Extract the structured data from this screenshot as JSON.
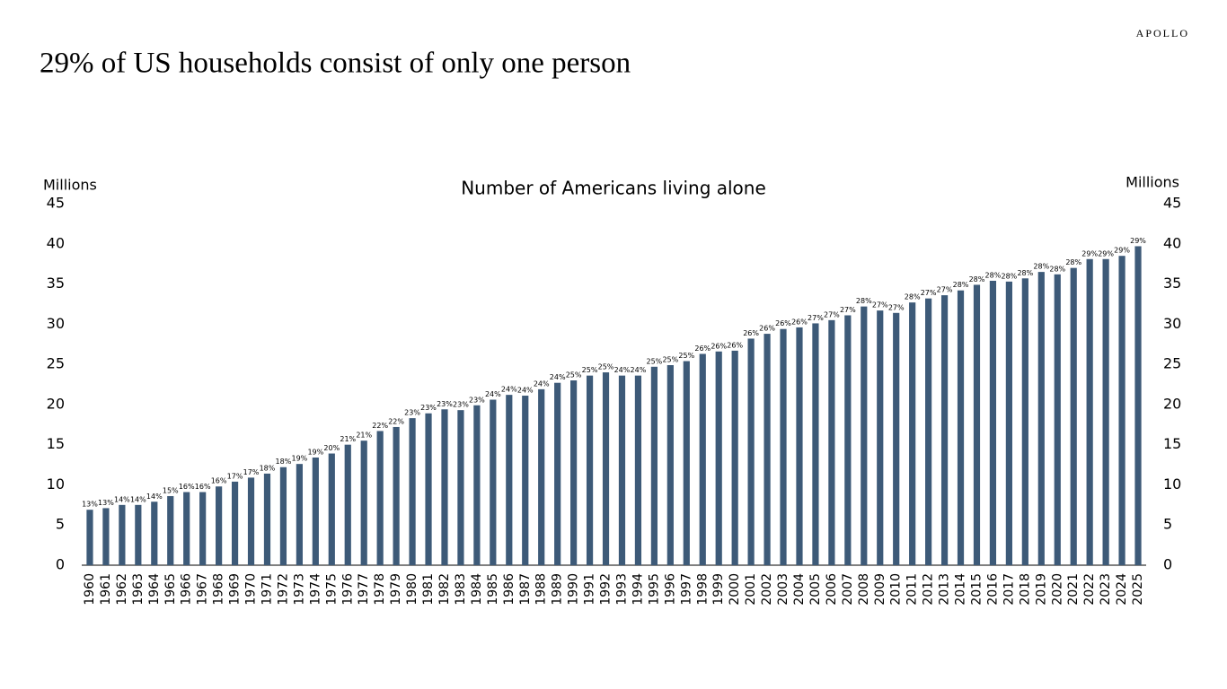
{
  "headline": "29% of US households consist of only one person",
  "brand": "APOLLO",
  "chart_data": {
    "type": "bar",
    "title": "Number of Americans living alone",
    "y_label": "Millions",
    "y2_label": "Millions",
    "color": "#3d5a78",
    "categories": [
      "1960",
      "1961",
      "1962",
      "1963",
      "1964",
      "1965",
      "1966",
      "1967",
      "1968",
      "1969",
      "1970",
      "1971",
      "1972",
      "1973",
      "1974",
      "1975",
      "1976",
      "1977",
      "1978",
      "1979",
      "1980",
      "1981",
      "1982",
      "1983",
      "1984",
      "1985",
      "1986",
      "1987",
      "1988",
      "1989",
      "1990",
      "1991",
      "1992",
      "1993",
      "1994",
      "1995",
      "1996",
      "1997",
      "1998",
      "1999",
      "2000",
      "2001",
      "2002",
      "2003",
      "2004",
      "2005",
      "2006",
      "2007",
      "2008",
      "2009",
      "2010",
      "2011",
      "2012",
      "2013",
      "2014",
      "2015",
      "2016",
      "2017",
      "2018",
      "2019",
      "2020",
      "2021",
      "2022",
      "2023",
      "2024",
      "2025"
    ],
    "values": [
      6.9,
      7.1,
      7.5,
      7.5,
      7.9,
      8.6,
      9.1,
      9.1,
      9.8,
      10.4,
      10.9,
      11.4,
      12.2,
      12.6,
      13.4,
      13.9,
      15.0,
      15.5,
      16.7,
      17.2,
      18.3,
      18.9,
      19.4,
      19.3,
      19.9,
      20.6,
      21.2,
      21.1,
      21.9,
      22.7,
      23.0,
      23.6,
      24.0,
      23.6,
      23.6,
      24.7,
      24.9,
      25.4,
      26.3,
      26.6,
      26.7,
      28.2,
      28.8,
      29.4,
      29.6,
      30.1,
      30.5,
      31.1,
      32.2,
      31.7,
      31.4,
      32.7,
      33.2,
      33.6,
      34.2,
      34.9,
      35.4,
      35.3,
      35.7,
      36.5,
      36.2,
      37.0,
      38.1,
      38.1,
      38.5,
      39.7
    ],
    "bar_labels": [
      "13%",
      "13%",
      "14%",
      "14%",
      "14%",
      "15%",
      "16%",
      "16%",
      "16%",
      "17%",
      "17%",
      "18%",
      "18%",
      "19%",
      "19%",
      "20%",
      "21%",
      "21%",
      "22%",
      "22%",
      "23%",
      "23%",
      "23%",
      "23%",
      "23%",
      "24%",
      "24%",
      "24%",
      "24%",
      "24%",
      "25%",
      "25%",
      "25%",
      "24%",
      "24%",
      "25%",
      "25%",
      "25%",
      "26%",
      "26%",
      "26%",
      "26%",
      "26%",
      "26%",
      "26%",
      "27%",
      "27%",
      "27%",
      "28%",
      "27%",
      "27%",
      "28%",
      "27%",
      "27%",
      "28%",
      "28%",
      "28%",
      "28%",
      "28%",
      "28%",
      "28%",
      "28%",
      "29%",
      "29%",
      "29%",
      "29%"
    ],
    "ylim": [
      0,
      45
    ],
    "yticks": [
      0,
      5,
      10,
      15,
      20,
      25,
      30,
      35,
      40,
      45
    ],
    "y2lim": [
      0,
      45
    ],
    "y2ticks": [
      0,
      5,
      10,
      15,
      20,
      25,
      30,
      35,
      40,
      45
    ]
  }
}
